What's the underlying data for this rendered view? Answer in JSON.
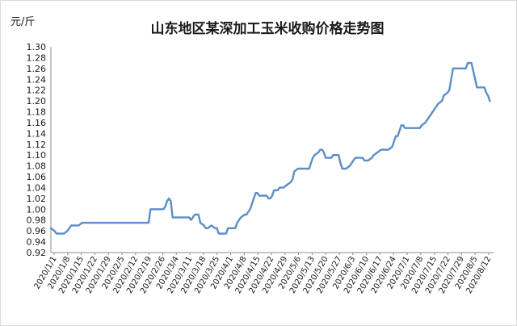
{
  "chart_data": {
    "type": "line",
    "title": "山东地区某深加工玉米收购价格走势图",
    "ylabel": "元/斤",
    "xlabel": "",
    "ylim": [
      0.92,
      1.3
    ],
    "ytick_step": 0.02,
    "grid": false,
    "legend": "none",
    "line_color": "#5b8fc7",
    "tick_labels_x": [
      "2020/1/1",
      "2020/1/8",
      "2020/1/15",
      "2020/1/22",
      "2020/1/29",
      "2020/2/5",
      "2020/2/12",
      "2020/2/19",
      "2020/2/26",
      "2020/3/4",
      "2020/3/11",
      "2020/3/18",
      "2020/3/25",
      "2020/4/1",
      "2020/4/8",
      "2020/4/15",
      "2020/4/22",
      "2020/4/29",
      "2020/5/6",
      "2020/5/13",
      "2020/5/20",
      "2020/5/27",
      "2020/6/3",
      "2020/6/10",
      "2020/6/17",
      "2020/6/24",
      "2020/7/1",
      "2020/7/8",
      "2020/7/15",
      "2020/7/22",
      "2020/7/29",
      "2020/8/5",
      "2020/8/12"
    ],
    "series": [
      {
        "values": [
          [
            0,
            0.965
          ],
          [
            2,
            0.96
          ],
          [
            3,
            0.955
          ],
          [
            5,
            0.955
          ],
          [
            7,
            0.955
          ],
          [
            9,
            0.96
          ],
          [
            10,
            0.965
          ],
          [
            11,
            0.97
          ],
          [
            13,
            0.97
          ],
          [
            15,
            0.97
          ],
          [
            17,
            0.975
          ],
          [
            20,
            0.975
          ],
          [
            25,
            0.975
          ],
          [
            30,
            0.975
          ],
          [
            35,
            0.975
          ],
          [
            40,
            0.975
          ],
          [
            45,
            0.975
          ],
          [
            50,
            0.975
          ],
          [
            53,
            0.975
          ],
          [
            54,
            1.0
          ],
          [
            58,
            1.0
          ],
          [
            61,
            1.0
          ],
          [
            62,
            1.005
          ],
          [
            63,
            1.015
          ],
          [
            64,
            1.02
          ],
          [
            65,
            1.015
          ],
          [
            66,
            0.985
          ],
          [
            70,
            0.985
          ],
          [
            73,
            0.985
          ],
          [
            75,
            0.985
          ],
          [
            76,
            0.98
          ],
          [
            77,
            0.985
          ],
          [
            78,
            0.99
          ],
          [
            80,
            0.99
          ],
          [
            81,
            0.975
          ],
          [
            83,
            0.97
          ],
          [
            84,
            0.965
          ],
          [
            85,
            0.965
          ],
          [
            87,
            0.97
          ],
          [
            89,
            0.965
          ],
          [
            90,
            0.965
          ],
          [
            91,
            0.955
          ],
          [
            94,
            0.955
          ],
          [
            95,
            0.955
          ],
          [
            96,
            0.965
          ],
          [
            98,
            0.965
          ],
          [
            100,
            0.965
          ],
          [
            101,
            0.975
          ],
          [
            103,
            0.985
          ],
          [
            105,
            0.99
          ],
          [
            106,
            0.99
          ],
          [
            108,
            1.0
          ],
          [
            109,
            1.01
          ],
          [
            111,
            1.03
          ],
          [
            112,
            1.03
          ],
          [
            113,
            1.025
          ],
          [
            115,
            1.025
          ],
          [
            117,
            1.025
          ],
          [
            118,
            1.02
          ],
          [
            119,
            1.02
          ],
          [
            120,
            1.025
          ],
          [
            121,
            1.035
          ],
          [
            123,
            1.035
          ],
          [
            124,
            1.04
          ],
          [
            126,
            1.04
          ],
          [
            128,
            1.045
          ],
          [
            130,
            1.05
          ],
          [
            131,
            1.055
          ],
          [
            132,
            1.07
          ],
          [
            134,
            1.075
          ],
          [
            136,
            1.075
          ],
          [
            138,
            1.075
          ],
          [
            140,
            1.075
          ],
          [
            141,
            1.085
          ],
          [
            142,
            1.095
          ],
          [
            143,
            1.1
          ],
          [
            145,
            1.105
          ],
          [
            146,
            1.11
          ],
          [
            147,
            1.11
          ],
          [
            148,
            1.105
          ],
          [
            149,
            1.095
          ],
          [
            152,
            1.095
          ],
          [
            153,
            1.1
          ],
          [
            156,
            1.1
          ],
          [
            157,
            1.085
          ],
          [
            158,
            1.075
          ],
          [
            160,
            1.075
          ],
          [
            162,
            1.08
          ],
          [
            163,
            1.085
          ],
          [
            164,
            1.09
          ],
          [
            165,
            1.095
          ],
          [
            167,
            1.095
          ],
          [
            169,
            1.095
          ],
          [
            170,
            1.09
          ],
          [
            172,
            1.09
          ],
          [
            174,
            1.095
          ],
          [
            175,
            1.1
          ],
          [
            177,
            1.105
          ],
          [
            179,
            1.11
          ],
          [
            181,
            1.11
          ],
          [
            183,
            1.11
          ],
          [
            185,
            1.115
          ],
          [
            186,
            1.125
          ],
          [
            187,
            1.135
          ],
          [
            188,
            1.135
          ],
          [
            189,
            1.145
          ],
          [
            190,
            1.155
          ],
          [
            191,
            1.155
          ],
          [
            192,
            1.15
          ],
          [
            194,
            1.15
          ],
          [
            200,
            1.15
          ],
          [
            201,
            1.155
          ],
          [
            203,
            1.16
          ],
          [
            205,
            1.17
          ],
          [
            206,
            1.175
          ],
          [
            207,
            1.18
          ],
          [
            208,
            1.185
          ],
          [
            210,
            1.195
          ],
          [
            212,
            1.2
          ],
          [
            213,
            1.21
          ],
          [
            215,
            1.215
          ],
          [
            216,
            1.22
          ],
          [
            217,
            1.24
          ],
          [
            218,
            1.26
          ],
          [
            224,
            1.26
          ],
          [
            225,
            1.26
          ],
          [
            226,
            1.27
          ],
          [
            228,
            1.27
          ],
          [
            229,
            1.255
          ],
          [
            230,
            1.24
          ],
          [
            231,
            1.225
          ],
          [
            233,
            1.225
          ],
          [
            235,
            1.225
          ],
          [
            236,
            1.215
          ],
          [
            237,
            1.21
          ],
          [
            238,
            1.2
          ]
        ]
      }
    ]
  }
}
